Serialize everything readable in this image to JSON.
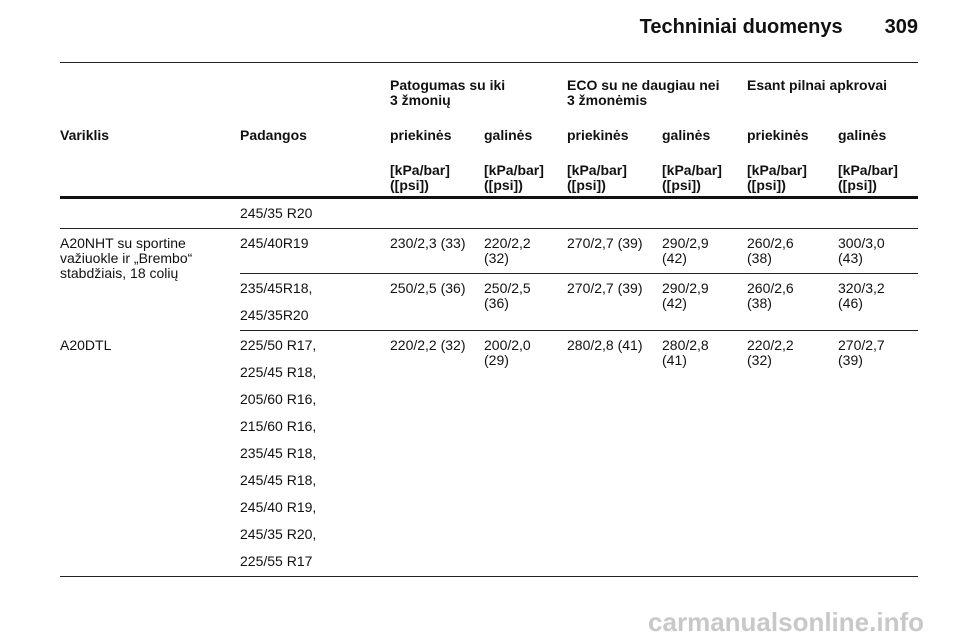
{
  "header": {
    "title": "Techniniai duomenys",
    "page": "309"
  },
  "table": {
    "group_headers": [
      {
        "lines": [
          "Patogumas su iki",
          "3 žmonių"
        ]
      },
      {
        "lines": [
          "ECO su ne daugiau nei",
          "3 žmonėmis"
        ]
      },
      {
        "lines": [
          "Esant pilnai apkrovai"
        ]
      }
    ],
    "columns": [
      "Variklis",
      "Padangos",
      "priekinės",
      "galinės",
      "priekinės",
      "galinės",
      "priekinės",
      "galinės"
    ],
    "units": [
      "[kPa/bar] ([psi])",
      "[kPa/bar] ([psi])",
      "[kPa/bar] ([psi])",
      "[kPa/bar] ([psi])",
      "[kPa/bar] ([psi])",
      "[kPa/bar] ([psi])"
    ],
    "lead_row": {
      "tires": [
        "245/35 R20"
      ]
    },
    "groups": [
      {
        "engine": "A20NHT su sportine važiuokle ir „Brembo“ stabdžiais, 18 colių",
        "rows": [
          {
            "tires": [
              "245/40R19"
            ],
            "values": [
              "230/2,3 (33)",
              "220/2,2 (32)",
              "270/2,7 (39)",
              "290/2,9 (42)",
              "260/2,6 (38)",
              "300/3,0 (43)"
            ]
          },
          {
            "tires": [
              "235/45R18,",
              "245/35R20"
            ],
            "values": [
              "250/2,5 (36)",
              "250/2,5 (36)",
              "270/2,7 (39)",
              "290/2,9 (42)",
              "260/2,6 (38)",
              "320/3,2 (46)"
            ]
          }
        ]
      },
      {
        "engine": "A20DTL",
        "rows": [
          {
            "tires": [
              "225/50 R17,",
              "225/45 R18,",
              "205/60 R16,",
              "215/60 R16,",
              "235/45 R18,",
              "245/45 R18,",
              "245/40 R19,",
              "245/35 R20,",
              "225/55 R17"
            ],
            "values": [
              "220/2,2 (32)",
              "200/2,0 (29)",
              "280/2,8 (41)",
              "280/2,8 (41)",
              "220/2,2 (32)",
              "270/2,7 (39)"
            ]
          }
        ]
      }
    ]
  },
  "watermark": "carmanualsonline.info"
}
